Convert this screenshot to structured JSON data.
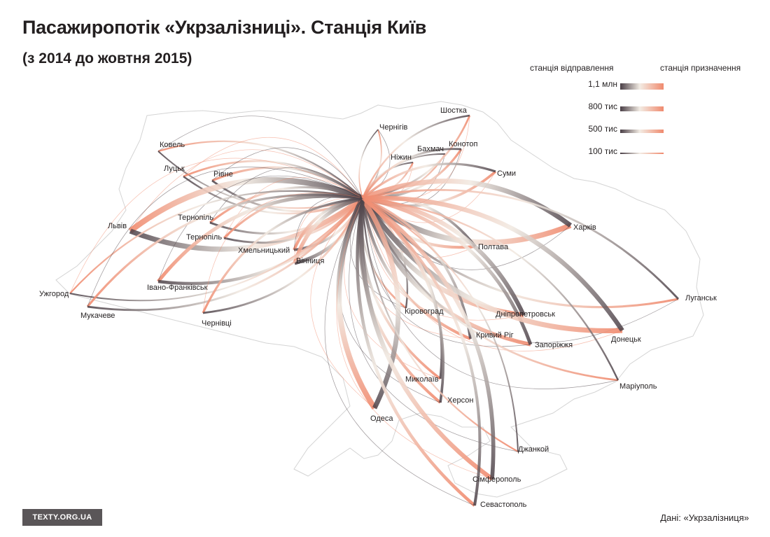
{
  "title": "Пасажиропотік «Укрзалізниці». Станція Київ",
  "subtitle": "(з 2014 до жовтня 2015)",
  "legend": {
    "departure_label": "станція відправлення",
    "arrival_label": "станція призначення",
    "gradient_colors": [
      "#4a3f46",
      "#f3ece4",
      "#f08a6e"
    ],
    "rows": [
      {
        "label": "1,1 млн",
        "value": 1100000
      },
      {
        "label": "800 тис",
        "value": 800000
      },
      {
        "label": "500 тис",
        "value": 500000
      },
      {
        "label": "100 тис",
        "value": 100000
      }
    ]
  },
  "hub": {
    "name": "Київ"
  },
  "colors": {
    "departure": "#4a3f46",
    "arrival": "#f08a6e",
    "border": "#d2d2d2"
  },
  "cities": [
    {
      "id": "kovel",
      "label": "Ковель",
      "weight": 0.25
    },
    {
      "id": "lutsk",
      "label": "Луцьк",
      "weight": 0.3
    },
    {
      "id": "rivne",
      "label": "Рівне",
      "weight": 0.35
    },
    {
      "id": "lviv",
      "label": "Львів",
      "weight": 0.9
    },
    {
      "id": "ternopil1",
      "label": "Тернопіль",
      "weight": 0.35
    },
    {
      "id": "ternopil2",
      "label": "Тернопіль",
      "weight": 0.35
    },
    {
      "id": "khmelnytskyi",
      "label": "Хмельницький",
      "weight": 0.45
    },
    {
      "id": "vinnytsia",
      "label": "Вінниця",
      "weight": 0.6
    },
    {
      "id": "ivano",
      "label": "Івано-Франківськ",
      "weight": 0.55
    },
    {
      "id": "uzhhorod",
      "label": "Ужгород",
      "weight": 0.25
    },
    {
      "id": "mukachevo",
      "label": "Мукачеве",
      "weight": 0.35
    },
    {
      "id": "chernivtsi",
      "label": "Чернівці",
      "weight": 0.35
    },
    {
      "id": "chernihiv",
      "label": "Чернігів",
      "weight": 0.2
    },
    {
      "id": "nizhyn",
      "label": "Ніжин",
      "weight": 0.25
    },
    {
      "id": "bakhmach",
      "label": "Бахмач",
      "weight": 0.25
    },
    {
      "id": "shostka",
      "label": "Шостка",
      "weight": 0.3
    },
    {
      "id": "konotop",
      "label": "Конотоп",
      "weight": 0.35
    },
    {
      "id": "sumy",
      "label": "Суми",
      "weight": 0.4
    },
    {
      "id": "kharkiv",
      "label": "Харків",
      "weight": 0.85
    },
    {
      "id": "poltava",
      "label": "Полтава",
      "weight": 0.45
    },
    {
      "id": "luhansk",
      "label": "Луганськ",
      "weight": 0.35
    },
    {
      "id": "dnipro",
      "label": "Дніпропетровськ",
      "weight": 0.75
    },
    {
      "id": "kirovohrad",
      "label": "Кіровоград",
      "weight": 0.3
    },
    {
      "id": "kryvyirih",
      "label": "Кривий Ріг",
      "weight": 0.45
    },
    {
      "id": "zaporizhzhia",
      "label": "Запоріжжя",
      "weight": 0.6
    },
    {
      "id": "donetsk",
      "label": "Донецьк",
      "weight": 0.8
    },
    {
      "id": "mariupol",
      "label": "Маріуполь",
      "weight": 0.3
    },
    {
      "id": "mykolaiv",
      "label": "Миколаїв",
      "weight": 0.4
    },
    {
      "id": "kherson",
      "label": "Херсон",
      "weight": 0.45
    },
    {
      "id": "odesa",
      "label": "Одеса",
      "weight": 0.85
    },
    {
      "id": "dzhankoi",
      "label": "Джанкой",
      "weight": 0.25
    },
    {
      "id": "simferopol",
      "label": "Сімферополь",
      "weight": 0.7
    },
    {
      "id": "sevastopol",
      "label": "Севастополь",
      "weight": 0.5
    }
  ],
  "footer": {
    "logo": "TEXTY.ORG.UA",
    "source": "Дані: «Укрзалізниця»"
  }
}
